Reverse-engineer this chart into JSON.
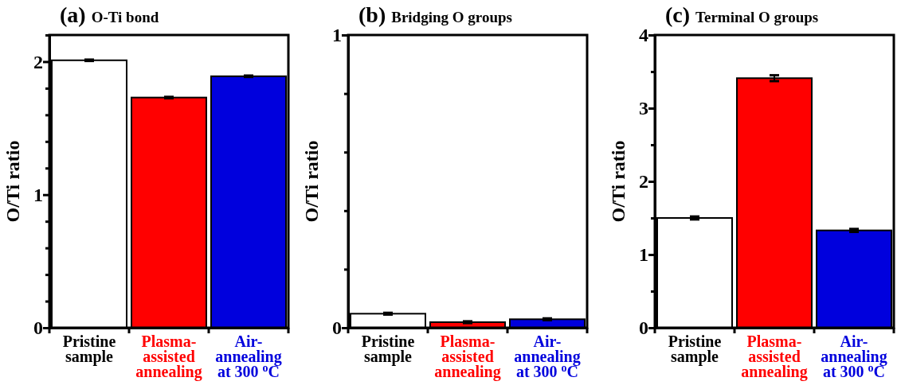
{
  "chart_data": [
    {
      "type": "bar",
      "title": "(a) O-Ti bond",
      "ylabel": "O/Ti ratio",
      "categories": [
        "Pristine\nsample",
        "Plasma-\nassisted\nannealing",
        "Air-\nannealing\nat 300 $^{o}$C"
      ],
      "values": [
        2.01,
        1.73,
        1.89
      ],
      "errors": [
        0.005,
        0.005,
        0.005
      ],
      "colors": [
        "#ffffff",
        "#ff0000",
        "#0000dd"
      ],
      "ylim": [
        0,
        2.2
      ],
      "yticks": [
        0,
        {
          "value": 0.2,
          "label": null
        },
        {
          "value": 0.4,
          "label": null
        },
        {
          "value": 0.6,
          "label": null
        },
        {
          "value": 0.8,
          "label": null
        },
        1,
        {
          "value": 1.2,
          "label": null
        },
        {
          "value": 1.4,
          "label": null
        },
        {
          "value": 1.6,
          "label": null
        },
        {
          "value": 1.8,
          "label": null
        },
        2,
        {
          "value": 2.2,
          "label": null
        }
      ]
    },
    {
      "type": "bar",
      "title": "(b) Bridging O groups",
      "ylabel": "O/Ti ratio",
      "categories": [
        "Pristine\nsample",
        "Plasma-\nassisted\nannealing",
        "Air-\nannealing\nat 300 $^{o}$C"
      ],
      "values": [
        0.048,
        0.019,
        0.029
      ],
      "errors": [
        0.003,
        0.003,
        0.003
      ],
      "colors": [
        "#ffffff",
        "#ff0000",
        "#0000dd"
      ],
      "ylim": [
        0,
        1
      ],
      "yticks": [
        0,
        {
          "value": 0.2,
          "label": null
        },
        {
          "value": 0.4,
          "label": null
        },
        {
          "value": 0.6,
          "label": null
        },
        {
          "value": 0.8,
          "label": null
        },
        1
      ]
    },
    {
      "type": "bar",
      "title": "(c) Terminal O groups",
      "ylabel": "O/Ti ratio",
      "categories": [
        "Pristine\nsample",
        "Plasma-\nassisted\nannealing",
        "Air-\nannealing\nat 300 $^{o}$C"
      ],
      "values": [
        1.5,
        3.41,
        1.33
      ],
      "errors": [
        0.02,
        0.04,
        0.02
      ],
      "colors": [
        "#ffffff",
        "#ff0000",
        "#0000dd"
      ],
      "ylim": [
        0,
        4
      ],
      "yticks": [
        0,
        {
          "value": 0.5,
          "label": null
        },
        1,
        {
          "value": 1.5,
          "label": null
        },
        2,
        {
          "value": 2.5,
          "label": null
        },
        3,
        {
          "value": 3.5,
          "label": null
        },
        4
      ]
    }
  ]
}
